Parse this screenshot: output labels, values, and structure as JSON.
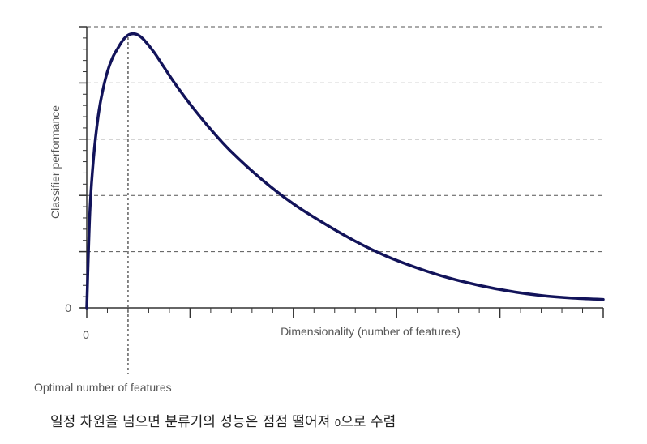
{
  "chart_data": {
    "type": "line",
    "title": "",
    "xlabel": "Dimensionality (number of features)",
    "ylabel": "Classifier performance",
    "x_tick_label": "0",
    "y_tick_label": "0",
    "annotation": "Optimal number of features",
    "xlim": [
      0,
      100
    ],
    "ylim": [
      0,
      100
    ],
    "optimal_x": 8,
    "grid": "dashed horizontal",
    "line_color": "#12135a",
    "series": [
      {
        "x": [
          0,
          0.6,
          1.3,
          2.2,
          3,
          4,
          5,
          6,
          7,
          8,
          9,
          10,
          11,
          13,
          15,
          17,
          20,
          24,
          28,
          34,
          40,
          46,
          52,
          58,
          64,
          70,
          76,
          82,
          88,
          94,
          100
        ],
        "y": [
          0,
          34,
          53,
          68,
          76.5,
          84,
          89,
          92.3,
          95.2,
          97,
          97.5,
          97,
          95.5,
          91,
          85.5,
          80,
          72.5,
          63.5,
          55.5,
          45.5,
          37,
          30,
          23.7,
          18.4,
          14.2,
          10.7,
          8,
          5.9,
          4.4,
          3.5,
          3
        ]
      }
    ]
  },
  "caption": {
    "before": "일정 차원을 넘으면 분류기의 성능은 점점 떨어져 ",
    "zero": "0",
    "after": "으로 수렴"
  }
}
